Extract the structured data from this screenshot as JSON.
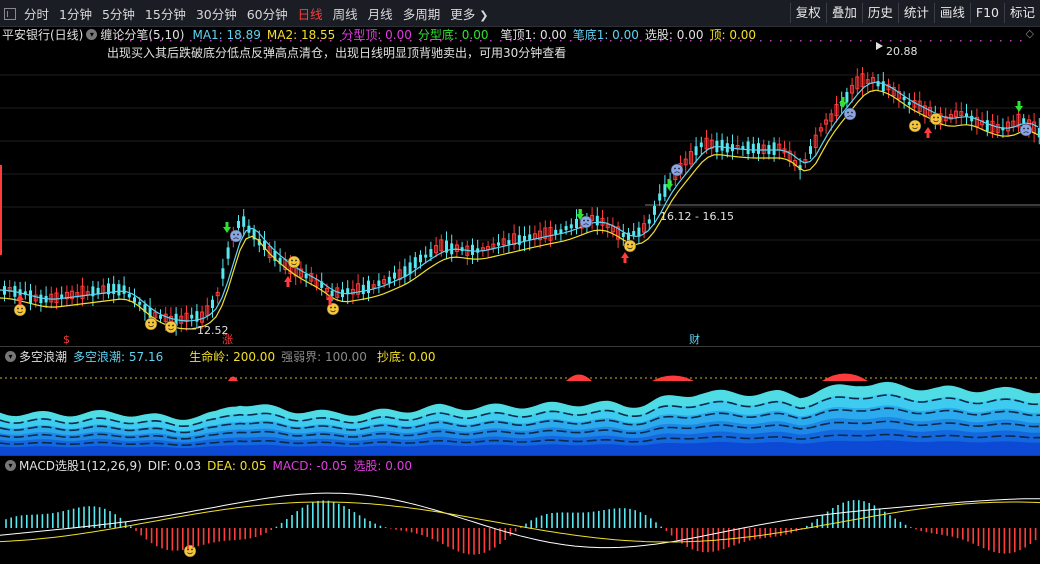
{
  "toolbar": {
    "periods": [
      "分时",
      "1分钟",
      "5分钟",
      "15分钟",
      "30分钟",
      "60分钟",
      "日线",
      "周线",
      "月线",
      "多周期"
    ],
    "active_period": "日线",
    "more_label": "更多",
    "right_buttons": [
      "复权",
      "叠加",
      "历史",
      "统计",
      "画线",
      "F10",
      "标记"
    ]
  },
  "main_panel": {
    "stock_title": "平安银行(日线)",
    "indicator_name": "缠论分笔(5,10)",
    "ma1_label": "MA1: 18.89",
    "ma2_label": "MA2: 18.55",
    "fenxing_top": "分型顶: 0.00",
    "fenxing_bottom": "分型底: 0.00",
    "bi_top": "笔顶1: 0.00",
    "bi_bottom": "笔底1: 0.00",
    "select": "选股: 0.00",
    "top": "顶: 0.00",
    "note": "出现买入其后跌破底分低点反弹高点清仓，出现日线明显顶背驰卖出，可用30分钟查看",
    "high_label": "20.88",
    "low_label": "12.52",
    "range_label": "16.12 - 16.15",
    "marker_dollar": "$",
    "marker_zhang": "涨",
    "marker_cai": "财"
  },
  "wave_panel": {
    "title": "多空浪潮",
    "value_label": "多空浪潮: 57.16",
    "life_label": "生命岭: 200.00",
    "strength_label": "强弱界: 100.00",
    "bottom_label": "抄底: 0.00"
  },
  "macd_panel": {
    "title": "MACD选股1(12,26,9)",
    "dif_label": "DIF: 0.03",
    "dea_label": "DEA: 0.05",
    "macd_label": "MACD: -0.05",
    "select_label": "选股: 0.00"
  },
  "colors": {
    "up": "#ff3b3b",
    "down": "#54e8f0",
    "ma1": "#5fd4f2",
    "ma2": "#f2e02b",
    "active": "#ff3b3b"
  }
}
